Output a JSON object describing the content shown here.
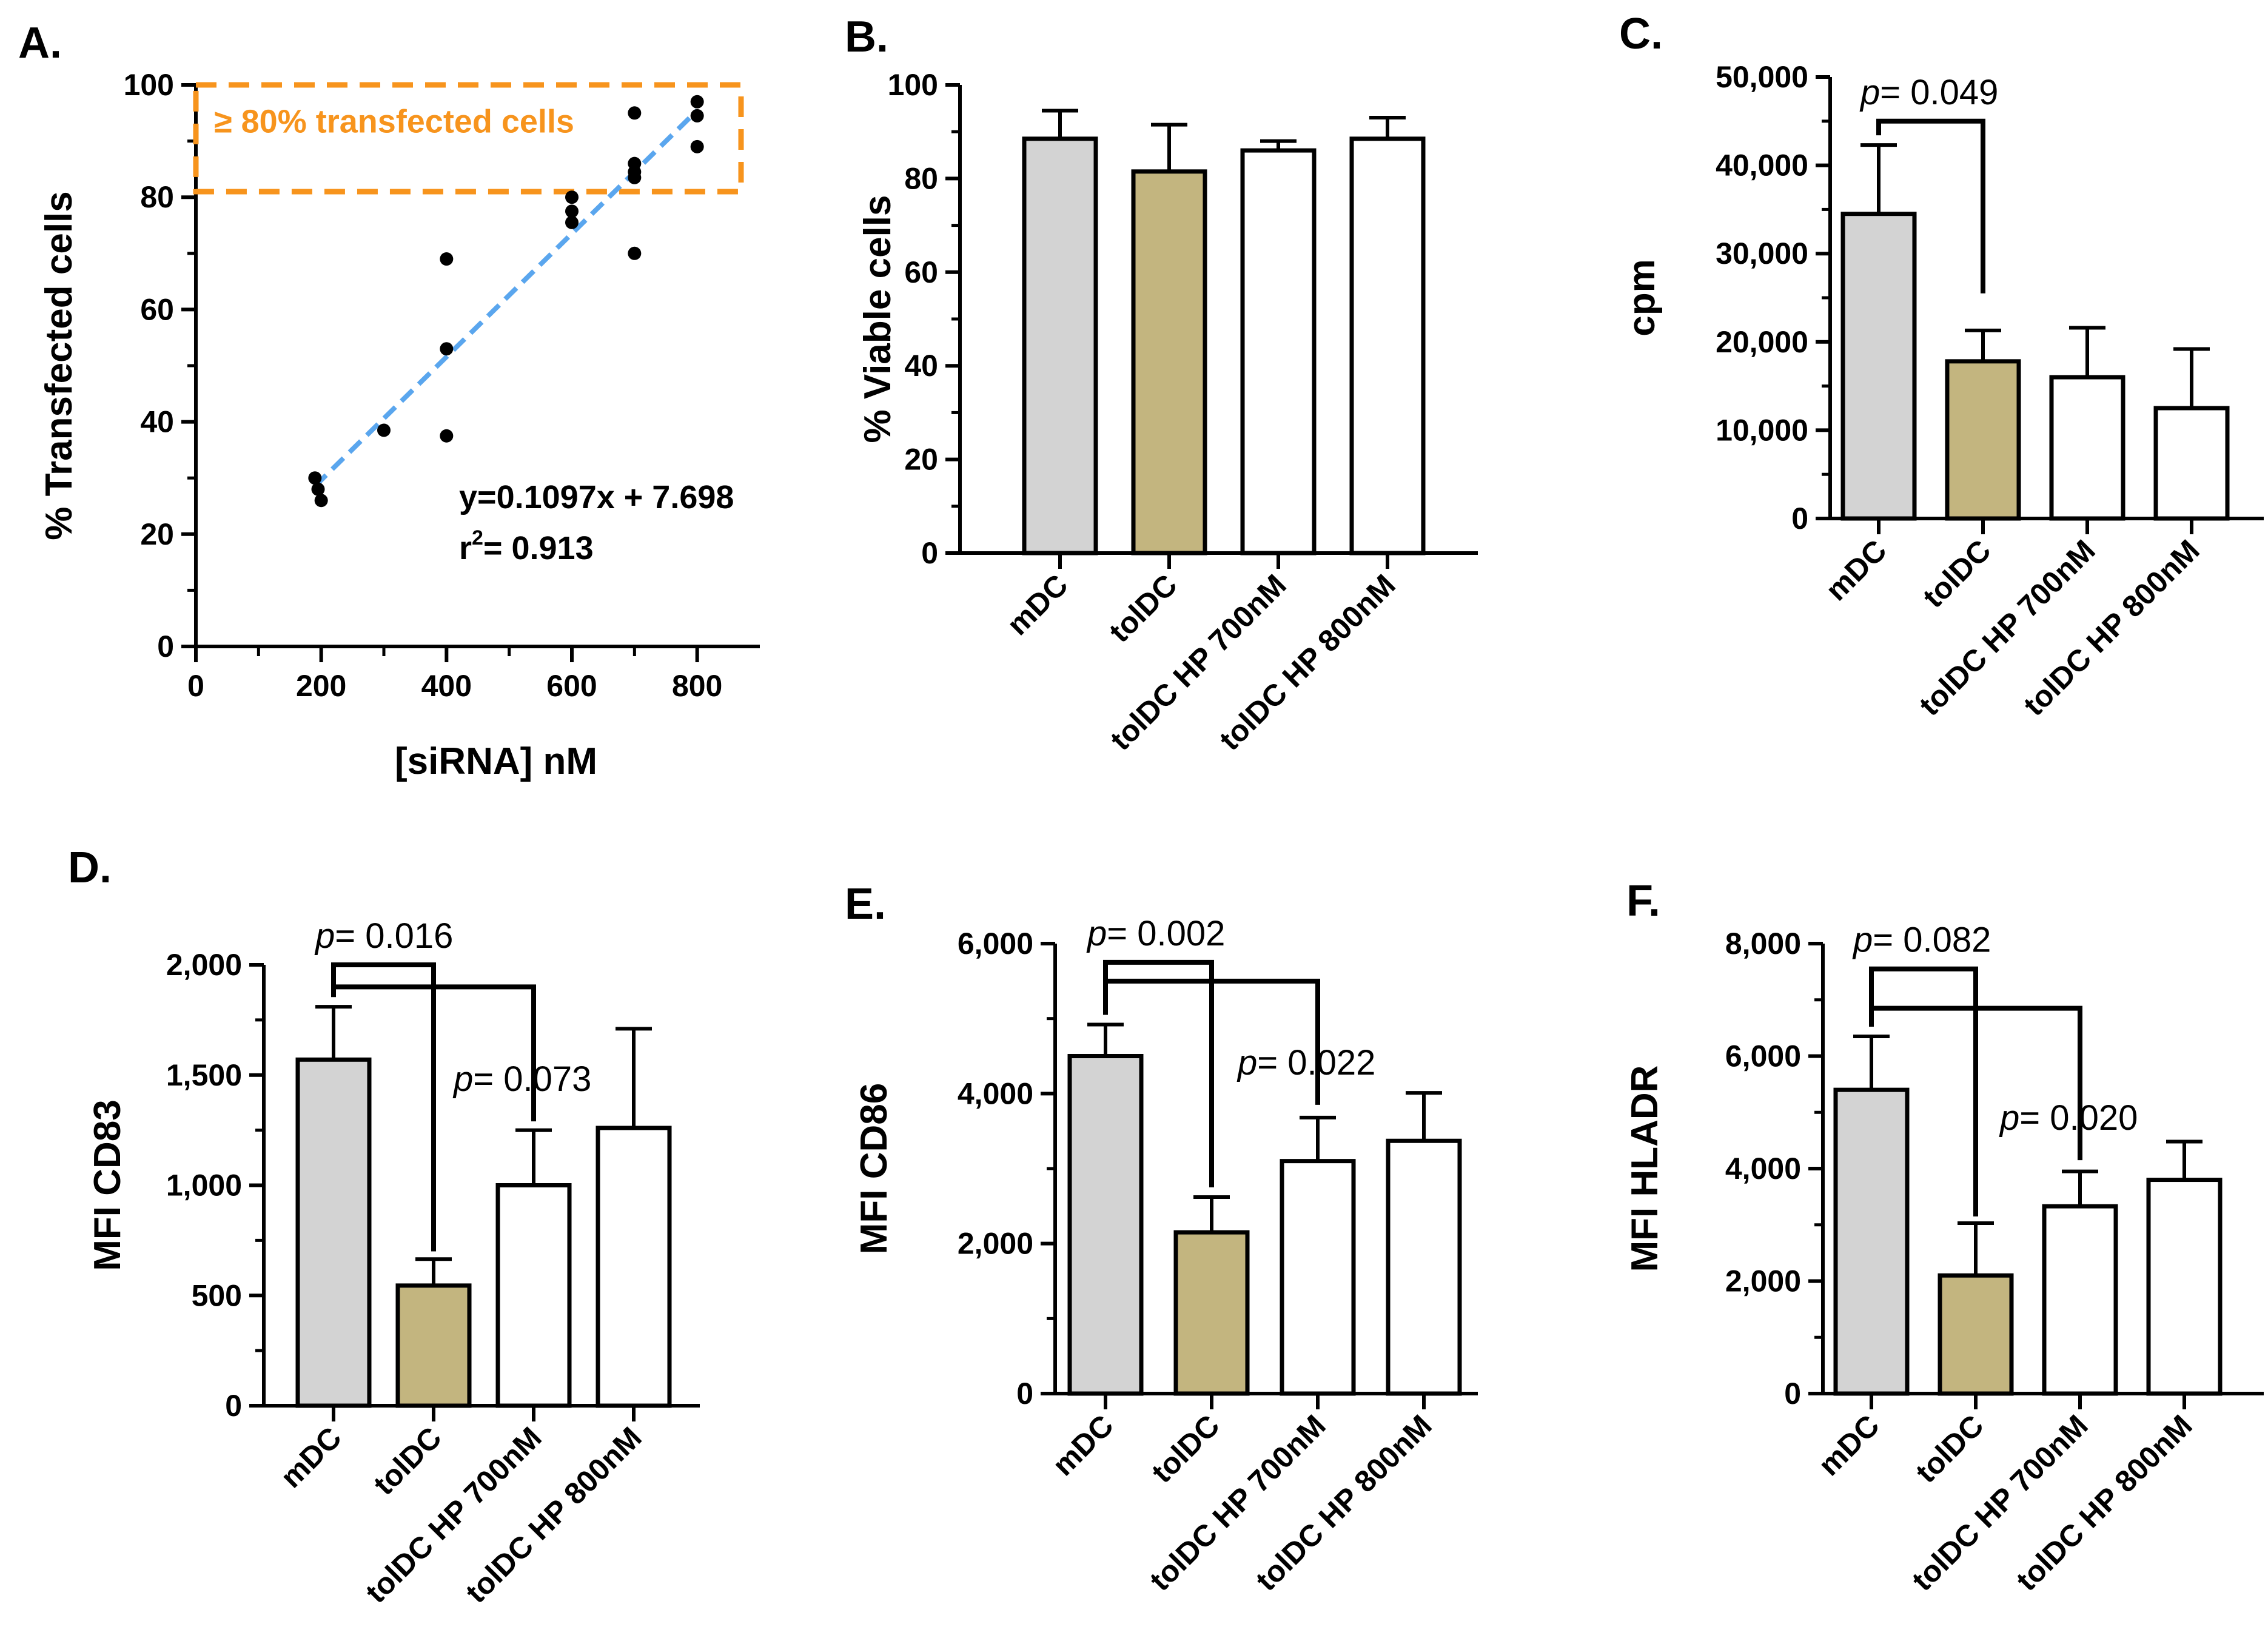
{
  "colors": {
    "mDC": "#d3d3d3",
    "tolDC": "#c3b57f",
    "hp": "#ffffff",
    "axis": "#000000",
    "fit": "#5aa6ee",
    "highlight": "#f7941d"
  },
  "chart_data": [
    {
      "id": "A",
      "panel_label": "A.",
      "type": "scatter",
      "xlabel": "[siRNA] nM",
      "ylabel": "% Transfected cells",
      "xlim": [
        0,
        900
      ],
      "ylim": [
        0,
        100
      ],
      "xticks": [
        {
          "v": 0,
          "label": "0"
        },
        {
          "v": 200,
          "label": "200"
        },
        {
          "v": 400,
          "label": "400"
        },
        {
          "v": 600,
          "label": "600"
        },
        {
          "v": 800,
          "label": "800"
        }
      ],
      "yticks": [
        {
          "v": 0,
          "label": "0"
        },
        {
          "v": 20,
          "label": "20"
        },
        {
          "v": 40,
          "label": "40"
        },
        {
          "v": 60,
          "label": "60"
        },
        {
          "v": 80,
          "label": "80"
        },
        {
          "v": 100,
          "label": "100"
        }
      ],
      "points": [
        {
          "x": 190,
          "y": 30
        },
        {
          "x": 195,
          "y": 28
        },
        {
          "x": 200,
          "y": 26
        },
        {
          "x": 300,
          "y": 38.5
        },
        {
          "x": 400,
          "y": 69
        },
        {
          "x": 400,
          "y": 53
        },
        {
          "x": 400,
          "y": 37.5
        },
        {
          "x": 600,
          "y": 80
        },
        {
          "x": 600,
          "y": 77.5
        },
        {
          "x": 600,
          "y": 75.5
        },
        {
          "x": 700,
          "y": 95
        },
        {
          "x": 700,
          "y": 86
        },
        {
          "x": 700,
          "y": 84.5
        },
        {
          "x": 700,
          "y": 83.5
        },
        {
          "x": 700,
          "y": 70
        },
        {
          "x": 800,
          "y": 97
        },
        {
          "x": 800,
          "y": 94.5
        },
        {
          "x": 800,
          "y": 89
        }
      ],
      "fit": {
        "slope": 0.1097,
        "intercept": 7.698,
        "x_from": 190,
        "x_to": 800
      },
      "equation_text": "y=0.1097x + 7.698",
      "r2_prefix": "r",
      "r2_sup": "2",
      "r2_value": "= 0.913",
      "highlight": {
        "label": "≥ 80% transfected cells",
        "x_from": 0,
        "x_to": 870,
        "y_from": 81,
        "y_to": 100
      }
    },
    {
      "id": "B",
      "panel_label": "B.",
      "type": "bar",
      "ylabel": "% Viable cells",
      "ylim": [
        0,
        100
      ],
      "yticks": [
        {
          "v": 0,
          "label": "0"
        },
        {
          "v": 20,
          "label": "20"
        },
        {
          "v": 40,
          "label": "40"
        },
        {
          "v": 60,
          "label": "60"
        },
        {
          "v": 80,
          "label": "80"
        },
        {
          "v": 100,
          "label": "100"
        }
      ],
      "categories": [
        "mDC",
        "tolDC",
        "tolDC HP 700nM",
        "tolDC HP 800nM"
      ],
      "values": [
        88.5,
        81.5,
        86,
        88.5
      ],
      "errors": [
        6,
        10,
        2,
        4.5
      ],
      "comparisons": []
    },
    {
      "id": "C",
      "panel_label": "C.",
      "type": "bar",
      "ylabel": "cpm",
      "ylim": [
        0,
        50000
      ],
      "yticks": [
        {
          "v": 0,
          "label": "0"
        },
        {
          "v": 10000,
          "label": "10,000"
        },
        {
          "v": 20000,
          "label": "20,000"
        },
        {
          "v": 30000,
          "label": "30,000"
        },
        {
          "v": 40000,
          "label": "40,000"
        },
        {
          "v": 50000,
          "label": "50,000"
        }
      ],
      "categories": [
        "mDC",
        "tolDC",
        "tolDC HP 700nM",
        "tolDC HP 800nM"
      ],
      "values": [
        34500,
        17800,
        16000,
        12500
      ],
      "errors": [
        7800,
        3500,
        5600,
        6700
      ],
      "comparisons": [
        {
          "from": 0,
          "to": 1,
          "y": 45000,
          "stop": 25500,
          "label": "p= 0.049"
        }
      ]
    },
    {
      "id": "D",
      "panel_label": "D.",
      "type": "bar",
      "ylabel": "MFI CD83",
      "ylim": [
        0,
        2000
      ],
      "yticks": [
        {
          "v": 0,
          "label": "0"
        },
        {
          "v": 500,
          "label": "500"
        },
        {
          "v": 1000,
          "label": "1,000"
        },
        {
          "v": 1500,
          "label": "1,500"
        },
        {
          "v": 2000,
          "label": "2,000"
        }
      ],
      "categories": [
        "mDC",
        "tolDC",
        "tolDC HP 700nM",
        "tolDC HP 800nM"
      ],
      "values": [
        1570,
        545,
        1000,
        1260
      ],
      "errors": [
        240,
        120,
        250,
        450
      ],
      "comparisons": [
        {
          "from": 0,
          "to": 1,
          "y": 2000,
          "stop": 700,
          "label": "p= 0.016"
        },
        {
          "from": 0,
          "to": 2,
          "y": 1900,
          "stop": 1290,
          "label": "p= 0.073"
        }
      ]
    },
    {
      "id": "E",
      "panel_label": "E.",
      "type": "bar",
      "ylabel": "MFI CD86",
      "ylim": [
        0,
        6000
      ],
      "yticks": [
        {
          "v": 0,
          "label": "0"
        },
        {
          "v": 2000,
          "label": "2,000"
        },
        {
          "v": 4000,
          "label": "4,000"
        },
        {
          "v": 6000,
          "label": "6,000"
        }
      ],
      "categories": [
        "mDC",
        "tolDC",
        "tolDC HP 700nM",
        "tolDC HP 800nM"
      ],
      "values": [
        4500,
        2150,
        3100,
        3370
      ],
      "errors": [
        420,
        470,
        580,
        640
      ],
      "comparisons": [
        {
          "from": 0,
          "to": 1,
          "y": 5750,
          "stop": 2750,
          "label": "p= 0.002"
        },
        {
          "from": 0,
          "to": 2,
          "y": 5500,
          "stop": 3850,
          "label": "p= 0.022"
        }
      ]
    },
    {
      "id": "F",
      "panel_label": "F.",
      "type": "bar",
      "ylabel": "MFI HLADR",
      "ylim": [
        0,
        8000
      ],
      "yticks": [
        {
          "v": 0,
          "label": "0"
        },
        {
          "v": 2000,
          "label": "2,000"
        },
        {
          "v": 4000,
          "label": "4,000"
        },
        {
          "v": 6000,
          "label": "6,000"
        },
        {
          "v": 8000,
          "label": "8,000"
        }
      ],
      "categories": [
        "mDC",
        "tolDC",
        "tolDC HP 700nM",
        "tolDC HP 800nM"
      ],
      "values": [
        5400,
        2100,
        3330,
        3800
      ],
      "errors": [
        950,
        930,
        620,
        680
      ],
      "comparisons": [
        {
          "from": 0,
          "to": 1,
          "y": 7550,
          "stop": 3150,
          "label": "p= 0.082"
        },
        {
          "from": 0,
          "to": 2,
          "y": 6850,
          "stop": 4150,
          "label": "p= 0.020"
        }
      ]
    }
  ]
}
